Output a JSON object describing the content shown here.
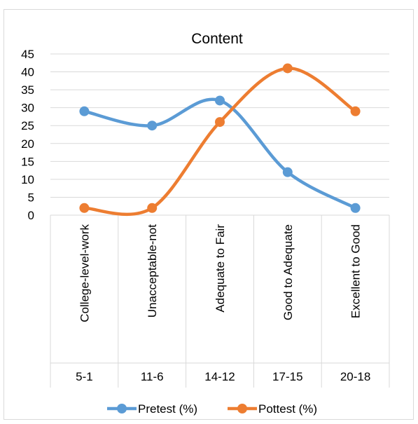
{
  "chart_data": {
    "type": "line",
    "title": "Content",
    "xlabel": "",
    "ylabel": "",
    "categories": [
      {
        "label": "College-level-work",
        "range": "5-1"
      },
      {
        "label": "Unacceptable-not",
        "range": "11-6"
      },
      {
        "label": "Adequate to Fair",
        "range": "14-12"
      },
      {
        "label": "Good to Adequate",
        "range": "17-15"
      },
      {
        "label": "Excellent to Good",
        "range": "20-18"
      }
    ],
    "series": [
      {
        "name": "Pretest (%)",
        "color": "#5b9bd5",
        "values": [
          29,
          25,
          32,
          12,
          2
        ]
      },
      {
        "name": "Pottest (%)",
        "color": "#ed7d31",
        "values": [
          2,
          2,
          26,
          41,
          29
        ]
      }
    ],
    "ylim": [
      0,
      45
    ],
    "yticks": [
      0,
      5,
      10,
      15,
      20,
      25,
      30,
      35,
      40,
      45
    ],
    "grid": true,
    "smooth": true,
    "legend": "bottom"
  }
}
